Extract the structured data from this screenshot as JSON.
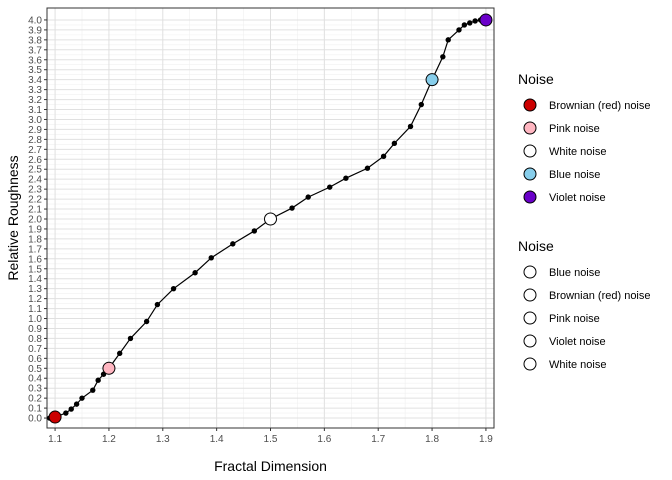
{
  "chart_data": {
    "type": "line",
    "xlabel": "Fractal Dimension",
    "ylabel": "Relative Roughness",
    "xlim": [
      1.085,
      1.915
    ],
    "ylim": [
      -0.1,
      4.12
    ],
    "x_ticks": [
      1.1,
      1.2,
      1.3,
      1.4,
      1.5,
      1.6,
      1.7,
      1.8,
      1.9
    ],
    "x_tick_labels": [
      "1.1",
      "1.2",
      "1.3",
      "1.4",
      "1.5",
      "1.6",
      "1.7",
      "1.8",
      "1.9"
    ],
    "y_ticks": [
      0.0,
      0.1,
      0.2,
      0.3,
      0.4,
      0.5,
      0.6,
      0.7,
      0.8,
      0.9,
      1.0,
      1.1,
      1.2,
      1.3,
      1.4,
      1.5,
      1.6,
      1.7,
      1.8,
      1.9,
      2.0,
      2.1,
      2.2,
      2.3,
      2.4,
      2.5,
      2.6,
      2.7,
      2.8,
      2.9,
      3.0,
      3.1,
      3.2,
      3.3,
      3.4,
      3.5,
      3.6,
      3.7,
      3.8,
      3.9,
      4.0
    ],
    "y_tick_labels": [
      "0.0",
      "0.1",
      "0.2",
      "0.3",
      "0.4",
      "0.5",
      "0.6",
      "0.7",
      "0.8",
      "0.9",
      "1.0",
      "1.1",
      "1.2",
      "1.3",
      "1.4",
      "1.5",
      "1.6",
      "1.7",
      "1.8",
      "1.9",
      "2.0",
      "2.1",
      "2.2",
      "2.3",
      "2.4",
      "2.5",
      "2.6",
      "2.7",
      "2.8",
      "2.9",
      "3.0",
      "3.1",
      "3.2",
      "3.3",
      "3.4",
      "3.5",
      "3.6",
      "3.7",
      "3.8",
      "3.9",
      "4.0"
    ],
    "grid": true,
    "legend_position": "right",
    "series": [
      {
        "x": [
          1.09,
          1.1,
          1.12,
          1.13,
          1.14,
          1.15,
          1.17,
          1.18,
          1.19,
          1.2,
          1.22,
          1.24,
          1.27,
          1.29,
          1.32,
          1.36,
          1.39,
          1.43,
          1.47,
          1.5,
          1.54,
          1.57,
          1.61,
          1.64,
          1.68,
          1.71,
          1.73,
          1.76,
          1.78,
          1.8,
          1.82,
          1.83,
          1.85,
          1.86,
          1.87,
          1.88,
          1.89,
          1.9
        ],
        "y": [
          0.0,
          0.01,
          0.05,
          0.09,
          0.14,
          0.2,
          0.28,
          0.38,
          0.44,
          0.5,
          0.65,
          0.8,
          0.97,
          1.14,
          1.3,
          1.46,
          1.61,
          1.75,
          1.88,
          2.0,
          2.11,
          2.22,
          2.32,
          2.41,
          2.51,
          2.63,
          2.76,
          2.93,
          3.15,
          3.4,
          3.63,
          3.8,
          3.9,
          3.95,
          3.97,
          3.99,
          4.0,
          4.0
        ]
      }
    ],
    "highlight_points": [
      {
        "name": "Brownian (red) noise",
        "x": 1.1,
        "y": 0.01,
        "color": "#cc0000"
      },
      {
        "name": "Pink noise",
        "x": 1.2,
        "y": 0.5,
        "color": "#ffb6c1"
      },
      {
        "name": "White noise",
        "x": 1.5,
        "y": 2.0,
        "color": "#ffffff"
      },
      {
        "name": "Blue noise",
        "x": 1.8,
        "y": 3.4,
        "color": "#87ceeb"
      },
      {
        "name": "Violet noise",
        "x": 1.9,
        "y": 4.0,
        "color": "#6a00c9"
      }
    ],
    "legends": [
      {
        "title": "Noise",
        "entries": [
          {
            "label": "Brownian (red) noise",
            "color": "#cc0000"
          },
          {
            "label": "Pink noise",
            "color": "#ffb6c1"
          },
          {
            "label": "White noise",
            "color": "#ffffff"
          },
          {
            "label": "Blue noise",
            "color": "#87ceeb"
          },
          {
            "label": "Violet noise",
            "color": "#6a00c9"
          }
        ]
      },
      {
        "title": "Noise",
        "entries": [
          {
            "label": "Blue noise",
            "color": "#ffffff"
          },
          {
            "label": "Brownian (red) noise",
            "color": "#ffffff"
          },
          {
            "label": "Pink noise",
            "color": "#ffffff"
          },
          {
            "label": "Violet noise",
            "color": "#ffffff"
          },
          {
            "label": "White noise",
            "color": "#ffffff"
          }
        ]
      }
    ]
  }
}
